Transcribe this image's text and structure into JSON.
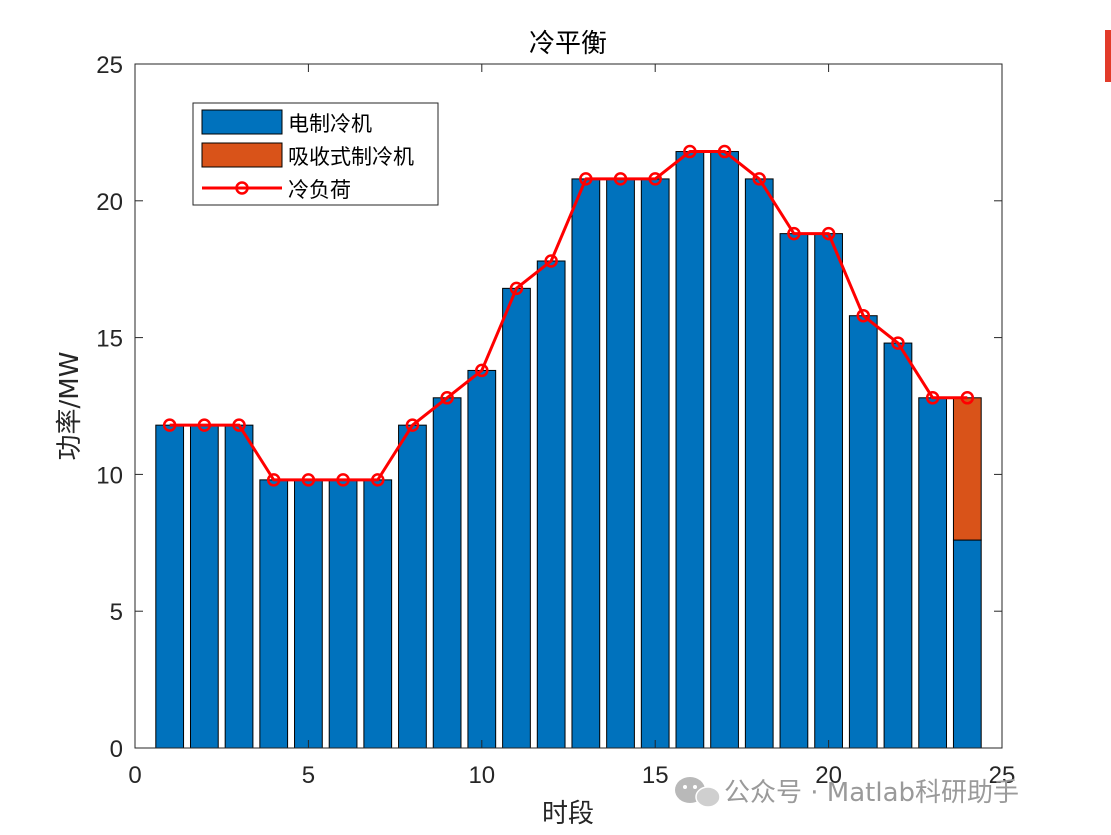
{
  "chart_data": {
    "type": "bar",
    "title": "冷平衡",
    "xlabel": "时段",
    "ylabel": "功率/MW",
    "xlim": [
      0,
      25
    ],
    "ylim": [
      0,
      25
    ],
    "xticks": [
      0,
      5,
      10,
      15,
      20,
      25
    ],
    "yticks": [
      0,
      5,
      10,
      15,
      20,
      25
    ],
    "x": [
      1,
      2,
      3,
      4,
      5,
      6,
      7,
      8,
      9,
      10,
      11,
      12,
      13,
      14,
      15,
      16,
      17,
      18,
      19,
      20,
      21,
      22,
      23,
      24
    ],
    "series": [
      {
        "name": "电制冷机",
        "kind": "stacked-bar",
        "color": "#0072BD",
        "values": [
          11.8,
          11.8,
          11.8,
          9.8,
          9.8,
          9.8,
          9.8,
          11.8,
          12.8,
          13.8,
          16.8,
          17.8,
          20.8,
          20.8,
          20.8,
          21.8,
          21.8,
          20.8,
          18.8,
          18.8,
          15.8,
          14.8,
          12.8,
          7.6
        ]
      },
      {
        "name": "吸收式制冷机",
        "kind": "stacked-bar",
        "color": "#D95319",
        "values": [
          0,
          0,
          0,
          0,
          0,
          0,
          0,
          0,
          0,
          0,
          0,
          0,
          0,
          0,
          0,
          0,
          0,
          0,
          0,
          0,
          0,
          0,
          0,
          5.2
        ]
      },
      {
        "name": "冷负荷",
        "kind": "line",
        "color": "#FF0000",
        "marker": "circle",
        "values": [
          11.8,
          11.8,
          11.8,
          9.8,
          9.8,
          9.8,
          9.8,
          11.8,
          12.8,
          13.8,
          16.8,
          17.8,
          20.8,
          20.8,
          20.8,
          21.8,
          21.8,
          20.8,
          18.8,
          18.8,
          15.8,
          14.8,
          12.8,
          12.8
        ]
      }
    ],
    "legend_position": "top-left",
    "grid": false
  },
  "watermark": {
    "text": "公众号 · Matlab科研助手",
    "icon": "wechat-icon"
  }
}
